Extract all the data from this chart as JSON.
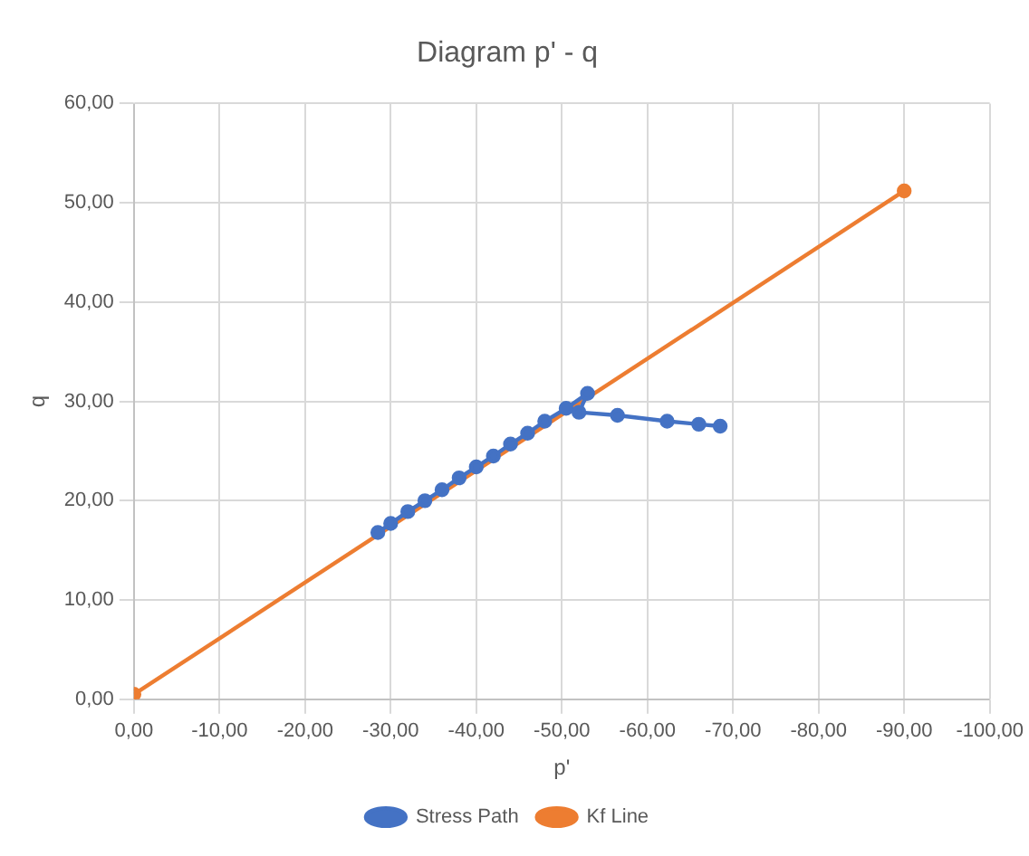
{
  "chart_data": {
    "type": "scatter",
    "title": "Diagram p' - q",
    "xlabel": "p'",
    "ylabel": "q",
    "series": [
      {
        "name": "Stress Path",
        "color": "#4472c4",
        "type": "line",
        "x": [
          -28.5,
          -30,
          -32,
          -34,
          -36,
          -38,
          -40,
          -42,
          -44,
          -46,
          -48,
          -50.5,
          -53,
          -52,
          -56.5,
          -62.3,
          -66,
          -68.5
        ],
        "values": [
          16.8,
          17.7,
          18.9,
          20.0,
          21.1,
          22.3,
          23.4,
          24.5,
          25.7,
          26.8,
          28.0,
          29.3,
          30.8,
          28.9,
          28.6,
          28.0,
          27.7,
          27.5
        ]
      },
      {
        "name": "Kf Line",
        "color": "#ed7d31",
        "type": "line",
        "x": [
          0,
          -90
        ],
        "values": [
          0.5,
          51.2
        ]
      }
    ],
    "xlim": [
      0,
      -100
    ],
    "xticks": [
      {
        "value": 0,
        "label": "0,00"
      },
      {
        "value": -10,
        "label": "-10,00"
      },
      {
        "value": -20,
        "label": "-20,00"
      },
      {
        "value": -30,
        "label": "-30,00"
      },
      {
        "value": -40,
        "label": "-40,00"
      },
      {
        "value": -50,
        "label": "-50,00"
      },
      {
        "value": -60,
        "label": "-60,00"
      },
      {
        "value": -70,
        "label": "-70,00"
      },
      {
        "value": -80,
        "label": "-80,00"
      },
      {
        "value": -90,
        "label": "-90,00"
      },
      {
        "value": -100,
        "label": "-100,00"
      }
    ],
    "ylim": [
      0,
      60
    ],
    "yticks": [
      {
        "value": 0,
        "label": "0,00"
      },
      {
        "value": 10,
        "label": "10,00"
      },
      {
        "value": 20,
        "label": "20,00"
      },
      {
        "value": 30,
        "label": "30,00"
      },
      {
        "value": 40,
        "label": "40,00"
      },
      {
        "value": 50,
        "label": "50,00"
      },
      {
        "value": 60,
        "label": "60,00"
      }
    ],
    "grid": true,
    "legend": "bottom",
    "marker": "circle",
    "line_style": "solid"
  }
}
